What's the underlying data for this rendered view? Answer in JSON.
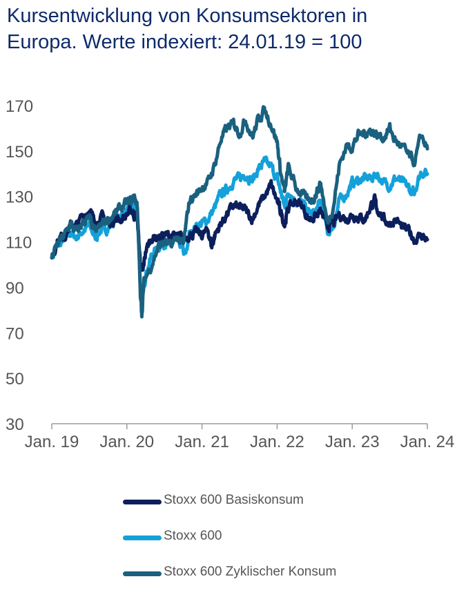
{
  "chart_data": {
    "type": "line",
    "title": [
      "Kursentwicklung von Konsumsektoren in",
      "Europa. Werte indexiert: 24.01.19 = 100"
    ],
    "xlabel": "",
    "ylabel": "",
    "ylim": [
      30,
      170
    ],
    "yticks": [
      "30",
      "50",
      "70",
      "90",
      "110",
      "130",
      "150",
      "170"
    ],
    "xticks": [
      "Jan. 19",
      "Jan. 20",
      "Jan. 21",
      "Jan. 22",
      "Jan. 23",
      "Jan. 24"
    ],
    "xlim": [
      2019.0,
      2024.0
    ],
    "grid": false,
    "legend": "bottom",
    "series": [
      {
        "name": "Stoxx 600 Basiskonsum",
        "color": "#0c1f5c",
        "points": [
          [
            2019.0,
            103
          ],
          [
            2019.08,
            111
          ],
          [
            2019.17,
            113
          ],
          [
            2019.25,
            117
          ],
          [
            2019.33,
            117
          ],
          [
            2019.42,
            122
          ],
          [
            2019.5,
            124
          ],
          [
            2019.58,
            118
          ],
          [
            2019.67,
            121
          ],
          [
            2019.75,
            118
          ],
          [
            2019.83,
            120
          ],
          [
            2019.92,
            120
          ],
          [
            2020.0,
            122
          ],
          [
            2020.06,
            124
          ],
          [
            2020.1,
            122
          ],
          [
            2020.14,
            120
          ],
          [
            2020.18,
            100
          ],
          [
            2020.21,
            96
          ],
          [
            2020.25,
            106
          ],
          [
            2020.33,
            112
          ],
          [
            2020.42,
            112
          ],
          [
            2020.5,
            113
          ],
          [
            2020.58,
            113
          ],
          [
            2020.67,
            112
          ],
          [
            2020.75,
            112
          ],
          [
            2020.83,
            113
          ],
          [
            2020.92,
            114
          ],
          [
            2021.0,
            113
          ],
          [
            2021.08,
            115
          ],
          [
            2021.13,
            108
          ],
          [
            2021.17,
            113
          ],
          [
            2021.25,
            118
          ],
          [
            2021.33,
            122
          ],
          [
            2021.42,
            126
          ],
          [
            2021.5,
            125
          ],
          [
            2021.58,
            124
          ],
          [
            2021.67,
            120
          ],
          [
            2021.75,
            126
          ],
          [
            2021.83,
            130
          ],
          [
            2021.92,
            135
          ],
          [
            2022.0,
            128
          ],
          [
            2022.05,
            123
          ],
          [
            2022.1,
            118
          ],
          [
            2022.15,
            125
          ],
          [
            2022.25,
            128
          ],
          [
            2022.33,
            126
          ],
          [
            2022.42,
            120
          ],
          [
            2022.5,
            121
          ],
          [
            2022.58,
            123
          ],
          [
            2022.67,
            117
          ],
          [
            2022.75,
            118
          ],
          [
            2022.83,
            122
          ],
          [
            2022.92,
            120
          ],
          [
            2023.0,
            122
          ],
          [
            2023.08,
            121
          ],
          [
            2023.17,
            120
          ],
          [
            2023.25,
            126
          ],
          [
            2023.3,
            128
          ],
          [
            2023.33,
            125
          ],
          [
            2023.42,
            120
          ],
          [
            2023.5,
            118
          ],
          [
            2023.58,
            120
          ],
          [
            2023.67,
            116
          ],
          [
            2023.75,
            115
          ],
          [
            2023.83,
            111
          ],
          [
            2023.92,
            113
          ],
          [
            2024.0,
            111
          ]
        ]
      },
      {
        "name": "Stoxx 600",
        "color": "#14a1d9",
        "points": [
          [
            2019.0,
            103
          ],
          [
            2019.08,
            108
          ],
          [
            2019.17,
            111
          ],
          [
            2019.25,
            114
          ],
          [
            2019.33,
            112
          ],
          [
            2019.42,
            115
          ],
          [
            2019.5,
            117
          ],
          [
            2019.58,
            112
          ],
          [
            2019.67,
            116
          ],
          [
            2019.75,
            116
          ],
          [
            2019.83,
            119
          ],
          [
            2019.92,
            122
          ],
          [
            2020.0,
            123
          ],
          [
            2020.06,
            124
          ],
          [
            2020.1,
            125
          ],
          [
            2020.14,
            122
          ],
          [
            2020.18,
            92
          ],
          [
            2020.21,
            86
          ],
          [
            2020.25,
            96
          ],
          [
            2020.33,
            104
          ],
          [
            2020.42,
            108
          ],
          [
            2020.5,
            110
          ],
          [
            2020.58,
            108
          ],
          [
            2020.67,
            111
          ],
          [
            2020.75,
            106
          ],
          [
            2020.78,
            104
          ],
          [
            2020.83,
            113
          ],
          [
            2020.92,
            117
          ],
          [
            2021.0,
            118
          ],
          [
            2021.08,
            120
          ],
          [
            2021.17,
            125
          ],
          [
            2021.25,
            131
          ],
          [
            2021.33,
            133
          ],
          [
            2021.42,
            137
          ],
          [
            2021.5,
            138
          ],
          [
            2021.58,
            140
          ],
          [
            2021.67,
            137
          ],
          [
            2021.75,
            142
          ],
          [
            2021.83,
            145
          ],
          [
            2021.92,
            143
          ],
          [
            2022.0,
            138
          ],
          [
            2022.05,
            132
          ],
          [
            2022.1,
            125
          ],
          [
            2022.15,
            133
          ],
          [
            2022.25,
            128
          ],
          [
            2022.33,
            127
          ],
          [
            2022.42,
            123
          ],
          [
            2022.5,
            122
          ],
          [
            2022.58,
            128
          ],
          [
            2022.67,
            114
          ],
          [
            2022.75,
            117
          ],
          [
            2022.83,
            128
          ],
          [
            2022.92,
            131
          ],
          [
            2023.0,
            136
          ],
          [
            2023.08,
            137
          ],
          [
            2023.17,
            138
          ],
          [
            2023.25,
            138
          ],
          [
            2023.33,
            140
          ],
          [
            2023.42,
            136
          ],
          [
            2023.5,
            135
          ],
          [
            2023.58,
            138
          ],
          [
            2023.67,
            136
          ],
          [
            2023.75,
            134
          ],
          [
            2023.8,
            131
          ],
          [
            2023.83,
            133
          ],
          [
            2023.92,
            141
          ],
          [
            2024.0,
            140
          ]
        ]
      },
      {
        "name": "Stoxx 600 Zyklischer Konsum",
        "color": "#1a607f",
        "points": [
          [
            2019.0,
            103
          ],
          [
            2019.08,
            109
          ],
          [
            2019.17,
            113
          ],
          [
            2019.25,
            118
          ],
          [
            2019.33,
            114
          ],
          [
            2019.42,
            119
          ],
          [
            2019.5,
            120
          ],
          [
            2019.58,
            114
          ],
          [
            2019.67,
            118
          ],
          [
            2019.75,
            120
          ],
          [
            2019.83,
            122
          ],
          [
            2019.92,
            125
          ],
          [
            2020.0,
            127
          ],
          [
            2020.06,
            128
          ],
          [
            2020.1,
            130
          ],
          [
            2020.14,
            126
          ],
          [
            2020.18,
            86
          ],
          [
            2020.2,
            79
          ],
          [
            2020.23,
            93
          ],
          [
            2020.33,
            100
          ],
          [
            2020.42,
            108
          ],
          [
            2020.5,
            110
          ],
          [
            2020.58,
            108
          ],
          [
            2020.67,
            112
          ],
          [
            2020.75,
            108
          ],
          [
            2020.83,
            128
          ],
          [
            2020.92,
            131
          ],
          [
            2021.0,
            134
          ],
          [
            2021.08,
            136
          ],
          [
            2021.17,
            144
          ],
          [
            2021.25,
            155
          ],
          [
            2021.33,
            160
          ],
          [
            2021.42,
            162
          ],
          [
            2021.5,
            158
          ],
          [
            2021.58,
            164
          ],
          [
            2021.67,
            156
          ],
          [
            2021.75,
            164
          ],
          [
            2021.83,
            168
          ],
          [
            2021.92,
            162
          ],
          [
            2022.0,
            154
          ],
          [
            2022.05,
            140
          ],
          [
            2022.1,
            132
          ],
          [
            2022.15,
            143
          ],
          [
            2022.25,
            134
          ],
          [
            2022.33,
            131
          ],
          [
            2022.42,
            128
          ],
          [
            2022.5,
            130
          ],
          [
            2022.58,
            136
          ],
          [
            2022.67,
            118
          ],
          [
            2022.75,
            126
          ],
          [
            2022.83,
            144
          ],
          [
            2022.92,
            152
          ],
          [
            2023.0,
            152
          ],
          [
            2023.08,
            157
          ],
          [
            2023.17,
            158
          ],
          [
            2023.25,
            159
          ],
          [
            2023.33,
            157
          ],
          [
            2023.42,
            156
          ],
          [
            2023.5,
            160
          ],
          [
            2023.58,
            154
          ],
          [
            2023.67,
            152
          ],
          [
            2023.75,
            148
          ],
          [
            2023.83,
            145
          ],
          [
            2023.92,
            157
          ],
          [
            2024.0,
            151
          ]
        ]
      }
    ]
  }
}
